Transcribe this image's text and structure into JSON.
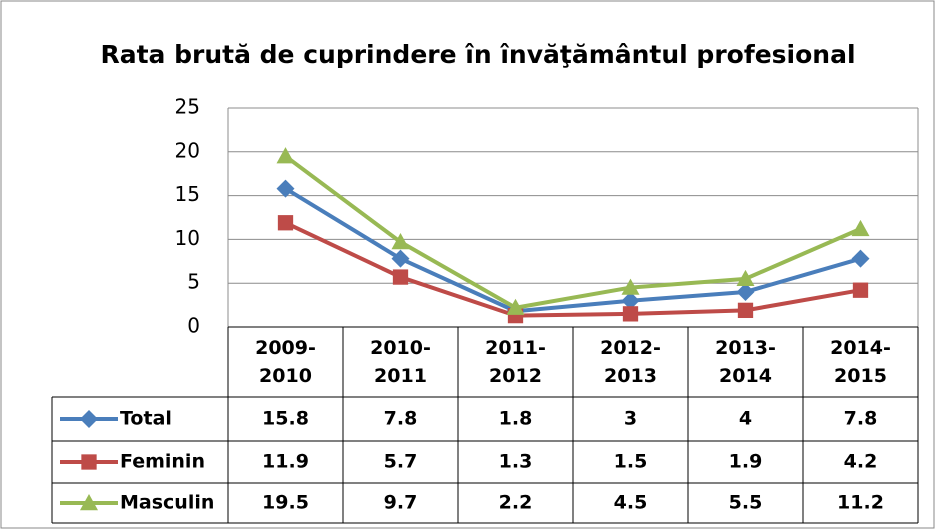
{
  "chart_data": {
    "type": "line",
    "title": "Rata brută de cuprindere în învăţământul profesional",
    "categories": [
      "2009-2010",
      "2010-2011",
      "2011-2012",
      "2012-2013",
      "2013-2014",
      "2014-2015"
    ],
    "series": [
      {
        "name": "Total",
        "color": "#4a7ebb",
        "marker": "diamond",
        "values": [
          15.8,
          7.8,
          1.8,
          3,
          4,
          7.8
        ]
      },
      {
        "name": "Feminin",
        "color": "#be4b48",
        "marker": "square",
        "values": [
          11.9,
          5.7,
          1.3,
          1.5,
          1.9,
          4.2
        ]
      },
      {
        "name": "Masculin",
        "color": "#98b954",
        "marker": "triangle",
        "values": [
          19.5,
          9.7,
          2.2,
          4.5,
          5.5,
          11.2
        ]
      }
    ],
    "ylim": [
      0,
      25
    ],
    "yticks": [
      0,
      5,
      10,
      15,
      20,
      25
    ],
    "grid": true
  }
}
